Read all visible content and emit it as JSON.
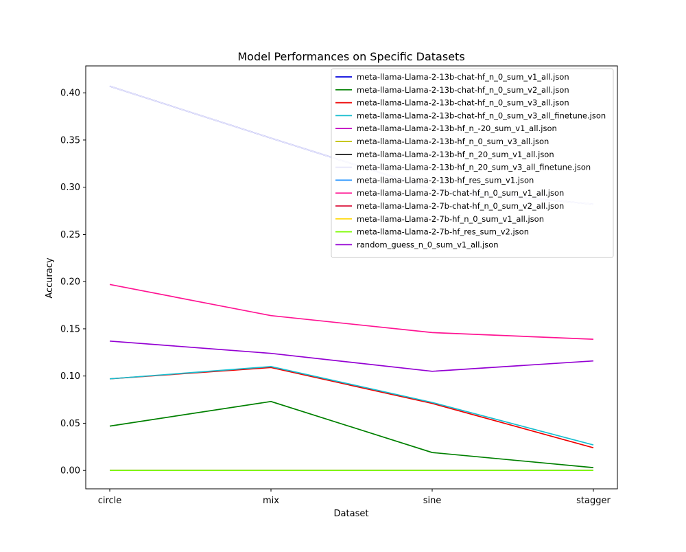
{
  "chart_data": {
    "type": "line",
    "title": "Model Performances on Specific Datasets",
    "xlabel": "Dataset",
    "ylabel": "Accuracy",
    "categories": [
      "circle",
      "mix",
      "sine",
      "stagger"
    ],
    "ylim": [
      -0.0195,
      0.4285
    ],
    "yticks": [
      0.0,
      0.05,
      0.1,
      0.15,
      0.2,
      0.25,
      0.3,
      0.35,
      0.4
    ],
    "ytick_labels": [
      "0.00",
      "0.05",
      "0.10",
      "0.15",
      "0.20",
      "0.25",
      "0.30",
      "0.35",
      "0.40"
    ],
    "grid": false,
    "legend_position": "top-right",
    "series": [
      {
        "name": "meta-llama-Llama-2-13b-chat-hf_n_0_sum_v1_all.json",
        "color": "#0000dd",
        "values": [
          0.407,
          0.352,
          0.298,
          0.282
        ]
      },
      {
        "name": "meta-llama-Llama-2-13b-chat-hf_n_0_sum_v2_all.json",
        "color": "#008000",
        "values": [
          0.047,
          0.073,
          0.019,
          0.003
        ]
      },
      {
        "name": "meta-llama-Llama-2-13b-chat-hf_n_0_sum_v3_all.json",
        "color": "#ee0000",
        "values": [
          0.097,
          0.109,
          0.071,
          0.024
        ]
      },
      {
        "name": "meta-llama-Llama-2-13b-chat-hf_n_0_sum_v3_all_finetune.json",
        "color": "#17becf",
        "values": [
          0.097,
          0.11,
          0.072,
          0.027
        ]
      },
      {
        "name": "meta-llama-Llama-2-13b-hf_n_-20_sum_v1_all.json",
        "color": "#bf00bf",
        "values": [
          0.0,
          0.0,
          0.0,
          0.0
        ]
      },
      {
        "name": "meta-llama-Llama-2-13b-hf_n_0_sum_v3_all.json",
        "color": "#bfbf00",
        "values": [
          0.0,
          0.0,
          0.0,
          0.0
        ]
      },
      {
        "name": "meta-llama-Llama-2-13b-hf_n_20_sum_v1_all.json",
        "color": "#000000",
        "values": [
          0.0,
          0.0,
          0.0,
          0.0
        ]
      },
      {
        "name": "meta-llama-Llama-2-13b-hf_n_20_sum_v3_all_finetune.json",
        "color": "#e6e6fa",
        "values": [
          0.407,
          0.352,
          0.298,
          0.282
        ]
      },
      {
        "name": "meta-llama-Llama-2-13b-hf_res_sum_v1.json",
        "color": "#1e90ff",
        "values": [
          0.0,
          0.0,
          0.0,
          0.0
        ]
      },
      {
        "name": "meta-llama-Llama-2-7b-chat-hf_n_0_sum_v1_all.json",
        "color": "#ff1493",
        "values": [
          0.197,
          0.164,
          0.146,
          0.139
        ]
      },
      {
        "name": "meta-llama-Llama-2-7b-chat-hf_n_0_sum_v2_all.json",
        "color": "#dc143c",
        "values": [
          0.0,
          0.0,
          0.0,
          0.0
        ]
      },
      {
        "name": "meta-llama-Llama-2-7b-hf_n_0_sum_v1_all.json",
        "color": "#ffd700",
        "values": [
          0.0,
          0.0,
          0.0,
          0.0
        ]
      },
      {
        "name": "meta-llama-Llama-2-7b-hf_res_sum_v2.json",
        "color": "#7cfc00",
        "values": [
          0.0,
          0.0,
          0.0,
          0.0
        ]
      },
      {
        "name": "random_guess_n_0_sum_v1_all.json",
        "color": "#9400d3",
        "values": [
          0.137,
          0.124,
          0.105,
          0.116
        ]
      }
    ]
  }
}
